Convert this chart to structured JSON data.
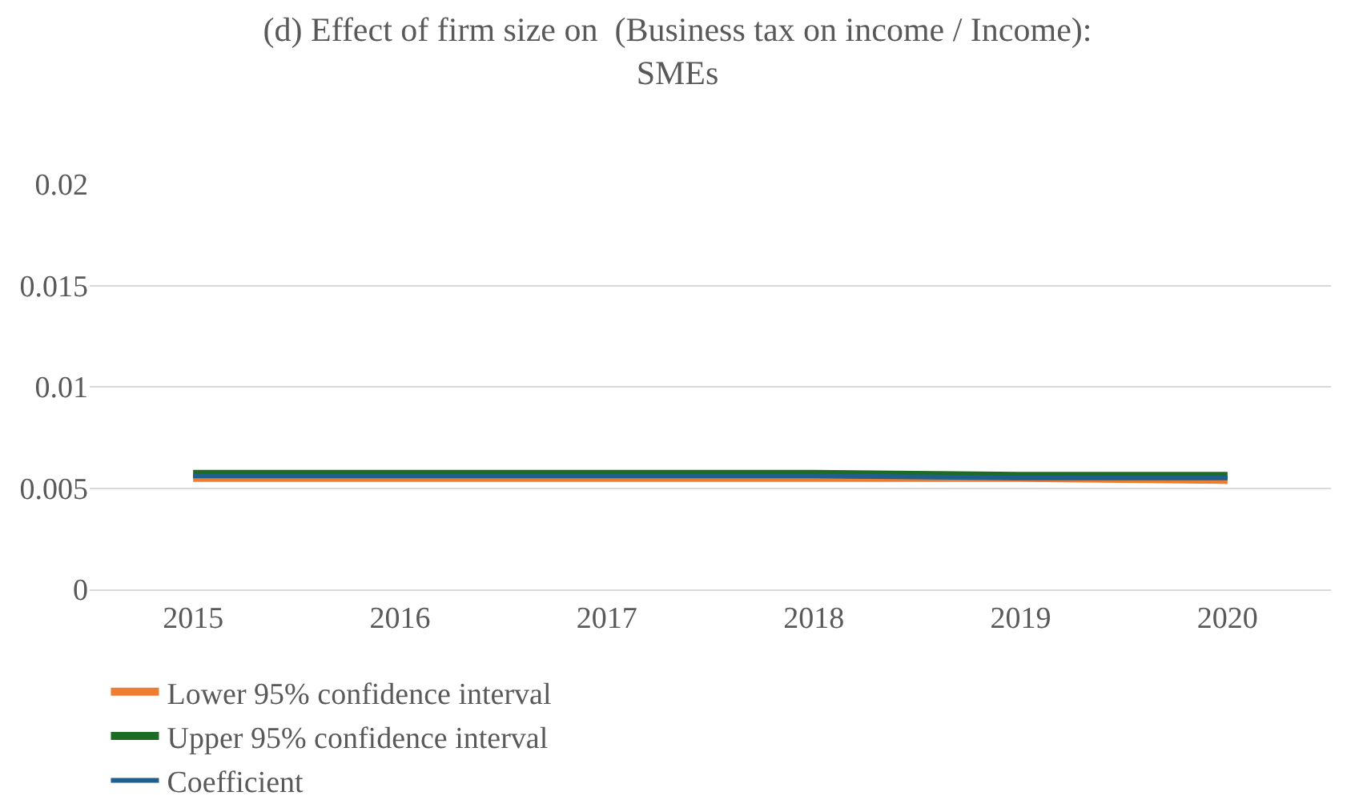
{
  "chart_data": {
    "type": "line",
    "title": "(d) Effect of firm size on  (Business tax on income / Income):\nSMEs",
    "categories": [
      "2015",
      "2016",
      "2017",
      "2018",
      "2019",
      "2020"
    ],
    "series": [
      {
        "name": "Coefficient",
        "color": "#1f5f8b",
        "values": [
          0.0056,
          0.0056,
          0.0056,
          0.0056,
          0.0055,
          0.0055
        ]
      },
      {
        "name": "Lower 95% confidence interval",
        "color": "#ed7d31",
        "values": [
          0.0055,
          0.0055,
          0.0055,
          0.0055,
          0.0055,
          0.0054
        ]
      },
      {
        "name": "Upper 95% confidence interval",
        "color": "#1e6b24",
        "values": [
          0.0057,
          0.0057,
          0.0057,
          0.0057,
          0.0056,
          0.0056
        ]
      }
    ],
    "ylim": [
      0,
      0.02
    ],
    "yticks": [
      0,
      0.005,
      0.01,
      0.015,
      0.02
    ],
    "grid": "y",
    "legend": "bottom",
    "marker": "none",
    "line_style": "solid"
  }
}
